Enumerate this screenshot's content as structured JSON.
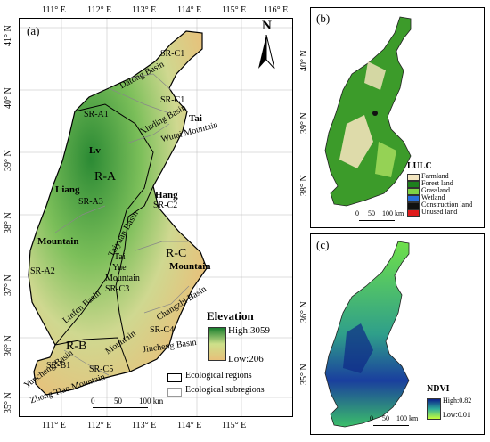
{
  "panel_a": {
    "label": "(a)",
    "north": "N",
    "lon_ticks": [
      "111° E",
      "112° E",
      "113° E",
      "114° E",
      "115° E",
      "116° E"
    ],
    "lat_ticks": [
      "41° N",
      "40° N",
      "39° N",
      "38° N",
      "37° N",
      "36° N",
      "35° N"
    ],
    "regions": [
      {
        "text": "R-A"
      },
      {
        "text": "R-B"
      },
      {
        "text": "R-C"
      }
    ],
    "subregions": [
      "SR-C1",
      "SR-C1",
      "SR-A1",
      "SR-A3",
      "SR-C2",
      "SR-A2",
      "SR-C3",
      "SR-C4",
      "SR-B1",
      "SR-C5"
    ],
    "places": [
      "Lv",
      "Liang",
      "Mountain",
      "Tai",
      "Hang",
      "Mountain",
      "Tai",
      "Yue",
      "Mountain"
    ],
    "basins": [
      "Datong Basin",
      "Xinding Basin",
      "Wutai Mountain",
      "Taiyuan Basin",
      "Linfen Basin",
      "Changzhi Basin",
      "Jincheng Basin",
      "Yuncheng Basin",
      "Zhong Tiao Mountain",
      "Mountain"
    ],
    "legend": {
      "title": "Elevation",
      "high": "High:3059",
      "low": "Low:206",
      "regions": "Ecological regions",
      "subregions": "Ecological subregions",
      "scale": [
        "0",
        "50",
        "100 km"
      ]
    }
  },
  "panel_b": {
    "label": "(b)",
    "lat_ticks": [
      "40° N",
      "39° N",
      "38° N"
    ],
    "legend": {
      "title": "LULC",
      "items": [
        {
          "label": "Farmland",
          "color": "#f3e6c0"
        },
        {
          "label": "Forest land",
          "color": "#1e7f1e"
        },
        {
          "label": "Grassland",
          "color": "#7fd146"
        },
        {
          "label": "Wetland",
          "color": "#2a6fd9"
        },
        {
          "label": "Construction land",
          "color": "#111111"
        },
        {
          "label": "Unused land",
          "color": "#e01b1b"
        }
      ]
    },
    "scale": [
      "0",
      "50",
      "100 km"
    ]
  },
  "panel_c": {
    "label": "(c)",
    "lat_ticks": [
      "36° N",
      "35° N"
    ],
    "legend": {
      "title": "NDVI",
      "high": "High:0.82",
      "low": "Low:0.01"
    },
    "scale": [
      "0",
      "50",
      "100 km"
    ]
  },
  "colors": {
    "elev_high": "#1a7f2e",
    "elev_low": "#e7c07a",
    "ndvi_high": "#0a1f8a",
    "ndvi_low": "#c6ff3a"
  }
}
